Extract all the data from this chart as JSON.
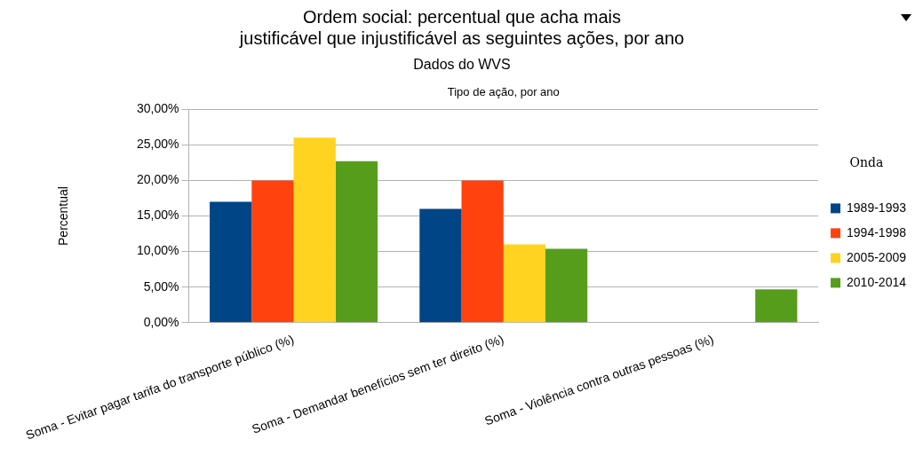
{
  "chart_data": {
    "type": "bar",
    "title": "Ordem social: percentual que acha mais\njustificável que injustificável as seguintes ações, por ano",
    "subtitle": "Dados do WVS",
    "annotations": [
      "Tipo de ação, por ano"
    ],
    "ylabel": "Percentual",
    "legend_title": "Onda",
    "categories": [
      "Soma - Evitar pagar tarifa do transporte público (%)",
      "Soma - Demandar benefícios sem ter direito (%)",
      "Soma - Violência contra outras pessoas (%)"
    ],
    "series": [
      {
        "name": "1989-1993",
        "color": "#004586",
        "values": [
          17.0,
          16.0,
          null
        ]
      },
      {
        "name": "1994-1998",
        "color": "#ff420e",
        "values": [
          20.0,
          20.0,
          null
        ]
      },
      {
        "name": "2005-2009",
        "color": "#ffd320",
        "values": [
          26.0,
          11.0,
          null
        ]
      },
      {
        "name": "2010-2014",
        "color": "#579d1c",
        "values": [
          22.7,
          10.4,
          4.7
        ]
      }
    ],
    "ylim": [
      0,
      30
    ],
    "yticks": [
      {
        "value": 0,
        "label": "0,00%"
      },
      {
        "value": 5,
        "label": "5,00%"
      },
      {
        "value": 10,
        "label": "10,00%"
      },
      {
        "value": 15,
        "label": "15,00%"
      },
      {
        "value": 20,
        "label": "20,00%"
      },
      {
        "value": 25,
        "label": "25,00%"
      },
      {
        "value": 30,
        "label": "30,00%"
      }
    ],
    "grid": "y",
    "legend": "right"
  }
}
